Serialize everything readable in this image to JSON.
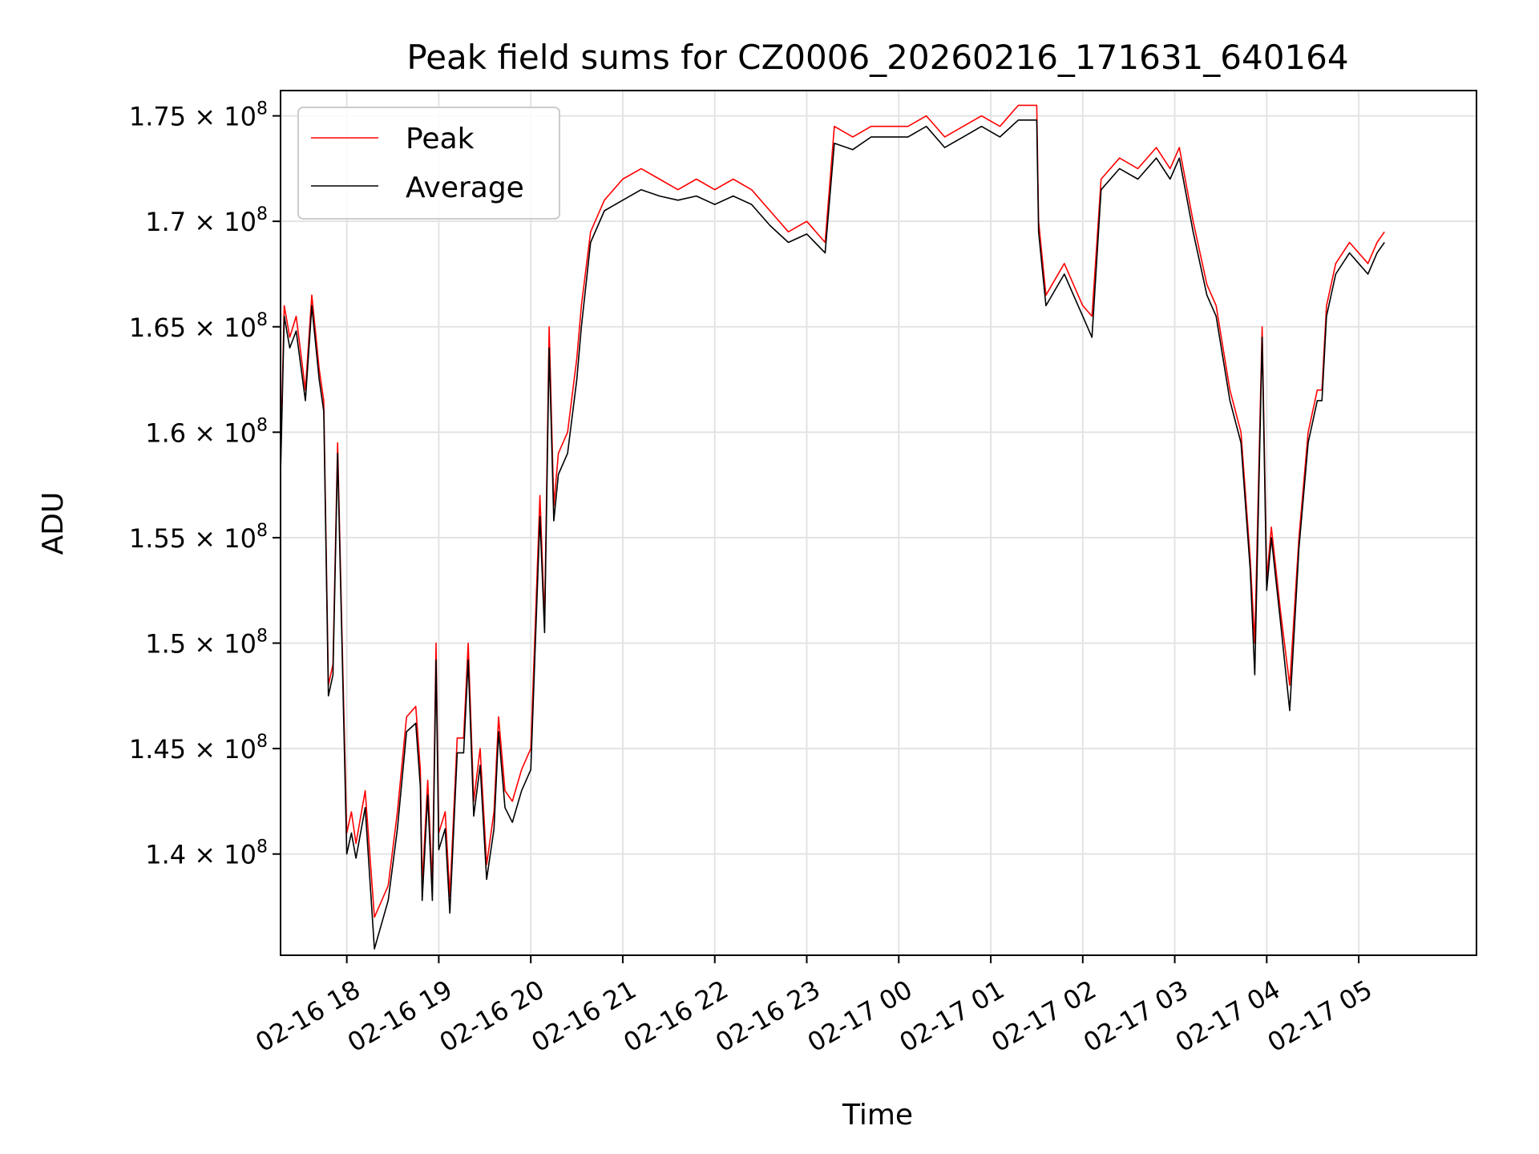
{
  "chart_data": {
    "type": "line",
    "title": "Peak field sums for CZ0006_20260216_171631_640164",
    "xlabel": "Time",
    "ylabel": "ADU",
    "grid": true,
    "legend_position": "top-left",
    "xlim": [
      -0.72,
      12.28
    ],
    "ylim": [
      135200000.0,
      176200000.0
    ],
    "x_unit": "hours since 02-16 18:00",
    "x_ticks": [
      {
        "value": 0,
        "label": "02-16 18"
      },
      {
        "value": 1,
        "label": "02-16 19"
      },
      {
        "value": 2,
        "label": "02-16 20"
      },
      {
        "value": 3,
        "label": "02-16 21"
      },
      {
        "value": 4,
        "label": "02-16 22"
      },
      {
        "value": 5,
        "label": "02-16 23"
      },
      {
        "value": 6,
        "label": "02-17 00"
      },
      {
        "value": 7,
        "label": "02-17 01"
      },
      {
        "value": 8,
        "label": "02-17 02"
      },
      {
        "value": 9,
        "label": "02-17 03"
      },
      {
        "value": 10,
        "label": "02-17 04"
      },
      {
        "value": 11,
        "label": "02-17 05"
      }
    ],
    "y_ticks": [
      {
        "value": 140000000.0,
        "mantissa": "1.4",
        "label": "1.4 × 10⁸"
      },
      {
        "value": 145000000.0,
        "mantissa": "1.45",
        "label": "1.45 × 10⁸"
      },
      {
        "value": 150000000.0,
        "mantissa": "1.5",
        "label": "1.5 × 10⁸"
      },
      {
        "value": 155000000.0,
        "mantissa": "1.55",
        "label": "1.55 × 10⁸"
      },
      {
        "value": 160000000.0,
        "mantissa": "1.6",
        "label": "1.6 × 10⁸"
      },
      {
        "value": 165000000.0,
        "mantissa": "1.65",
        "label": "1.65 × 10⁸"
      },
      {
        "value": 170000000.0,
        "mantissa": "1.7",
        "label": "1.7 × 10⁸"
      },
      {
        "value": 175000000.0,
        "mantissa": "1.75",
        "label": "1.75 × 10⁸"
      }
    ],
    "tick_base": "10",
    "tick_exponent": "8",
    "series": [
      {
        "name": "Peak",
        "color": "#ff0000",
        "points": [
          [
            -0.72,
            158500000.0
          ],
          [
            -0.68,
            166000000.0
          ],
          [
            -0.62,
            164500000.0
          ],
          [
            -0.55,
            165500000.0
          ],
          [
            -0.45,
            162000000.0
          ],
          [
            -0.38,
            166500000.0
          ],
          [
            -0.3,
            163000000.0
          ],
          [
            -0.25,
            161500000.0
          ],
          [
            -0.2,
            148000000.0
          ],
          [
            -0.15,
            149000000.0
          ],
          [
            -0.1,
            159500000.0
          ],
          [
            -0.05,
            150000000.0
          ],
          [
            0.0,
            141000000.0
          ],
          [
            0.05,
            142000000.0
          ],
          [
            0.1,
            140500000.0
          ],
          [
            0.2,
            143000000.0
          ],
          [
            0.3,
            137000000.0
          ],
          [
            0.45,
            138500000.0
          ],
          [
            0.55,
            142000000.0
          ],
          [
            0.65,
            146500000.0
          ],
          [
            0.75,
            147000000.0
          ],
          [
            0.8,
            144000000.0
          ],
          [
            0.82,
            138500000.0
          ],
          [
            0.88,
            143500000.0
          ],
          [
            0.93,
            138500000.0
          ],
          [
            0.97,
            150000000.0
          ],
          [
            1.0,
            141000000.0
          ],
          [
            1.07,
            142000000.0
          ],
          [
            1.12,
            138000000.0
          ],
          [
            1.2,
            145500000.0
          ],
          [
            1.27,
            145500000.0
          ],
          [
            1.32,
            150000000.0
          ],
          [
            1.38,
            142500000.0
          ],
          [
            1.45,
            145000000.0
          ],
          [
            1.52,
            139500000.0
          ],
          [
            1.6,
            142000000.0
          ],
          [
            1.65,
            146500000.0
          ],
          [
            1.72,
            143000000.0
          ],
          [
            1.8,
            142500000.0
          ],
          [
            1.9,
            144000000.0
          ],
          [
            2.0,
            145000000.0
          ],
          [
            2.1,
            157000000.0
          ],
          [
            2.15,
            151000000.0
          ],
          [
            2.2,
            165000000.0
          ],
          [
            2.25,
            156500000.0
          ],
          [
            2.3,
            159000000.0
          ],
          [
            2.4,
            160000000.0
          ],
          [
            2.5,
            163500000.0
          ],
          [
            2.55,
            166000000.0
          ],
          [
            2.65,
            169500000.0
          ],
          [
            2.8,
            171000000.0
          ],
          [
            3.0,
            172000000.0
          ],
          [
            3.2,
            172500000.0
          ],
          [
            3.4,
            172000000.0
          ],
          [
            3.6,
            171500000.0
          ],
          [
            3.8,
            172000000.0
          ],
          [
            4.0,
            171500000.0
          ],
          [
            4.2,
            172000000.0
          ],
          [
            4.4,
            171500000.0
          ],
          [
            4.6,
            170500000.0
          ],
          [
            4.8,
            169500000.0
          ],
          [
            5.0,
            170000000.0
          ],
          [
            5.2,
            169000000.0
          ],
          [
            5.3,
            174500000.0
          ],
          [
            5.5,
            174000000.0
          ],
          [
            5.7,
            174500000.0
          ],
          [
            5.9,
            174500000.0
          ],
          [
            6.1,
            174500000.0
          ],
          [
            6.3,
            175000000.0
          ],
          [
            6.5,
            174000000.0
          ],
          [
            6.7,
            174500000.0
          ],
          [
            6.9,
            175000000.0
          ],
          [
            7.1,
            174500000.0
          ],
          [
            7.3,
            175500000.0
          ],
          [
            7.45,
            175500000.0
          ],
          [
            7.5,
            175500000.0
          ],
          [
            7.52,
            170000000.0
          ],
          [
            7.6,
            166500000.0
          ],
          [
            7.8,
            168000000.0
          ],
          [
            7.95,
            166500000.0
          ],
          [
            8.0,
            166000000.0
          ],
          [
            8.1,
            165500000.0
          ],
          [
            8.2,
            172000000.0
          ],
          [
            8.4,
            173000000.0
          ],
          [
            8.6,
            172500000.0
          ],
          [
            8.8,
            173500000.0
          ],
          [
            8.95,
            172500000.0
          ],
          [
            9.05,
            173500000.0
          ],
          [
            9.2,
            170000000.0
          ],
          [
            9.35,
            167000000.0
          ],
          [
            9.45,
            166000000.0
          ],
          [
            9.6,
            162000000.0
          ],
          [
            9.72,
            160000000.0
          ],
          [
            9.82,
            154000000.0
          ],
          [
            9.87,
            150000000.0
          ],
          [
            9.95,
            165000000.0
          ],
          [
            10.0,
            153000000.0
          ],
          [
            10.05,
            155500000.0
          ],
          [
            10.15,
            151500000.0
          ],
          [
            10.25,
            148000000.0
          ],
          [
            10.35,
            155000000.0
          ],
          [
            10.45,
            160000000.0
          ],
          [
            10.55,
            162000000.0
          ],
          [
            10.6,
            162000000.0
          ],
          [
            10.65,
            166000000.0
          ],
          [
            10.75,
            168000000.0
          ],
          [
            10.9,
            169000000.0
          ],
          [
            11.0,
            168500000.0
          ],
          [
            11.1,
            168000000.0
          ],
          [
            11.2,
            169000000.0
          ],
          [
            11.28,
            169500000.0
          ]
        ]
      },
      {
        "name": "Average",
        "color": "#000000",
        "points": [
          [
            -0.72,
            158000000.0
          ],
          [
            -0.68,
            165500000.0
          ],
          [
            -0.62,
            164000000.0
          ],
          [
            -0.55,
            164800000.0
          ],
          [
            -0.45,
            161500000.0
          ],
          [
            -0.38,
            166000000.0
          ],
          [
            -0.3,
            162500000.0
          ],
          [
            -0.25,
            161000000.0
          ],
          [
            -0.2,
            147500000.0
          ],
          [
            -0.15,
            148500000.0
          ],
          [
            -0.1,
            159000000.0
          ],
          [
            -0.05,
            149500000.0
          ],
          [
            0.0,
            140000000.0
          ],
          [
            0.05,
            141000000.0
          ],
          [
            0.1,
            139800000.0
          ],
          [
            0.2,
            142200000.0
          ],
          [
            0.3,
            135500000.0
          ],
          [
            0.45,
            137800000.0
          ],
          [
            0.55,
            141200000.0
          ],
          [
            0.65,
            145800000.0
          ],
          [
            0.75,
            146200000.0
          ],
          [
            0.8,
            143200000.0
          ],
          [
            0.82,
            137800000.0
          ],
          [
            0.88,
            142800000.0
          ],
          [
            0.93,
            137800000.0
          ],
          [
            0.97,
            149200000.0
          ],
          [
            1.0,
            140200000.0
          ],
          [
            1.07,
            141200000.0
          ],
          [
            1.12,
            137200000.0
          ],
          [
            1.2,
            144800000.0
          ],
          [
            1.27,
            144800000.0
          ],
          [
            1.32,
            149200000.0
          ],
          [
            1.38,
            141800000.0
          ],
          [
            1.45,
            144200000.0
          ],
          [
            1.52,
            138800000.0
          ],
          [
            1.6,
            141200000.0
          ],
          [
            1.65,
            145800000.0
          ],
          [
            1.72,
            142200000.0
          ],
          [
            1.8,
            141500000.0
          ],
          [
            1.9,
            143000000.0
          ],
          [
            2.0,
            144000000.0
          ],
          [
            2.1,
            156000000.0
          ],
          [
            2.15,
            150500000.0
          ],
          [
            2.2,
            164000000.0
          ],
          [
            2.25,
            155800000.0
          ],
          [
            2.3,
            158000000.0
          ],
          [
            2.4,
            159000000.0
          ],
          [
            2.5,
            162500000.0
          ],
          [
            2.55,
            165000000.0
          ],
          [
            2.65,
            169000000.0
          ],
          [
            2.8,
            170500000.0
          ],
          [
            3.0,
            171000000.0
          ],
          [
            3.2,
            171500000.0
          ],
          [
            3.4,
            171200000.0
          ],
          [
            3.6,
            171000000.0
          ],
          [
            3.8,
            171200000.0
          ],
          [
            4.0,
            170800000.0
          ],
          [
            4.2,
            171200000.0
          ],
          [
            4.4,
            170800000.0
          ],
          [
            4.6,
            169800000.0
          ],
          [
            4.8,
            169000000.0
          ],
          [
            5.0,
            169400000.0
          ],
          [
            5.2,
            168500000.0
          ],
          [
            5.3,
            173700000.0
          ],
          [
            5.5,
            173400000.0
          ],
          [
            5.7,
            174000000.0
          ],
          [
            5.9,
            174000000.0
          ],
          [
            6.1,
            174000000.0
          ],
          [
            6.3,
            174500000.0
          ],
          [
            6.5,
            173500000.0
          ],
          [
            6.7,
            174000000.0
          ],
          [
            6.9,
            174500000.0
          ],
          [
            7.1,
            174000000.0
          ],
          [
            7.3,
            174800000.0
          ],
          [
            7.45,
            174800000.0
          ],
          [
            7.5,
            174800000.0
          ],
          [
            7.52,
            169500000.0
          ],
          [
            7.6,
            166000000.0
          ],
          [
            7.8,
            167500000.0
          ],
          [
            7.95,
            166000000.0
          ],
          [
            8.0,
            165500000.0
          ],
          [
            8.1,
            164500000.0
          ],
          [
            8.2,
            171500000.0
          ],
          [
            8.4,
            172500000.0
          ],
          [
            8.6,
            172000000.0
          ],
          [
            8.8,
            173000000.0
          ],
          [
            8.95,
            172000000.0
          ],
          [
            9.05,
            173000000.0
          ],
          [
            9.2,
            169500000.0
          ],
          [
            9.35,
            166500000.0
          ],
          [
            9.45,
            165500000.0
          ],
          [
            9.6,
            161500000.0
          ],
          [
            9.72,
            159500000.0
          ],
          [
            9.82,
            153500000.0
          ],
          [
            9.87,
            148500000.0
          ],
          [
            9.95,
            164500000.0
          ],
          [
            10.0,
            152500000.0
          ],
          [
            10.05,
            155000000.0
          ],
          [
            10.15,
            151000000.0
          ],
          [
            10.25,
            146800000.0
          ],
          [
            10.35,
            154500000.0
          ],
          [
            10.45,
            159500000.0
          ],
          [
            10.55,
            161500000.0
          ],
          [
            10.6,
            161500000.0
          ],
          [
            10.65,
            165500000.0
          ],
          [
            10.75,
            167500000.0
          ],
          [
            10.9,
            168500000.0
          ],
          [
            11.0,
            168000000.0
          ],
          [
            11.1,
            167500000.0
          ],
          [
            11.2,
            168500000.0
          ],
          [
            11.28,
            169000000.0
          ]
        ]
      }
    ]
  }
}
